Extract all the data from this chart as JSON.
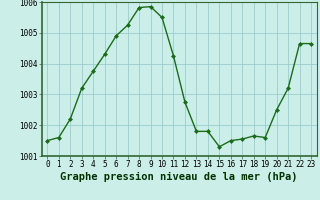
{
  "x": [
    0,
    1,
    2,
    3,
    4,
    5,
    6,
    7,
    8,
    9,
    10,
    11,
    12,
    13,
    14,
    15,
    16,
    17,
    18,
    19,
    20,
    21,
    22,
    23
  ],
  "y": [
    1001.5,
    1001.6,
    1002.2,
    1003.2,
    1003.75,
    1004.3,
    1004.9,
    1005.25,
    1005.82,
    1005.85,
    1005.5,
    1004.25,
    1002.75,
    1001.8,
    1001.8,
    1001.3,
    1001.5,
    1001.55,
    1001.65,
    1001.6,
    1002.5,
    1003.2,
    1004.65,
    1004.65
  ],
  "line_color": "#1a6b1a",
  "marker": "D",
  "marker_size": 2.0,
  "bg_color": "#cceee8",
  "grid_color": "#99cccc",
  "title": "Graphe pression niveau de la mer (hPa)",
  "ylim": [
    1001.0,
    1006.0
  ],
  "xlim": [
    -0.5,
    23.5
  ],
  "yticks": [
    1001,
    1002,
    1003,
    1004,
    1005,
    1006
  ],
  "xticks": [
    0,
    1,
    2,
    3,
    4,
    5,
    6,
    7,
    8,
    9,
    10,
    11,
    12,
    13,
    14,
    15,
    16,
    17,
    18,
    19,
    20,
    21,
    22,
    23
  ],
  "tick_fontsize": 5.5,
  "title_fontsize": 7.5,
  "linewidth": 1.0
}
